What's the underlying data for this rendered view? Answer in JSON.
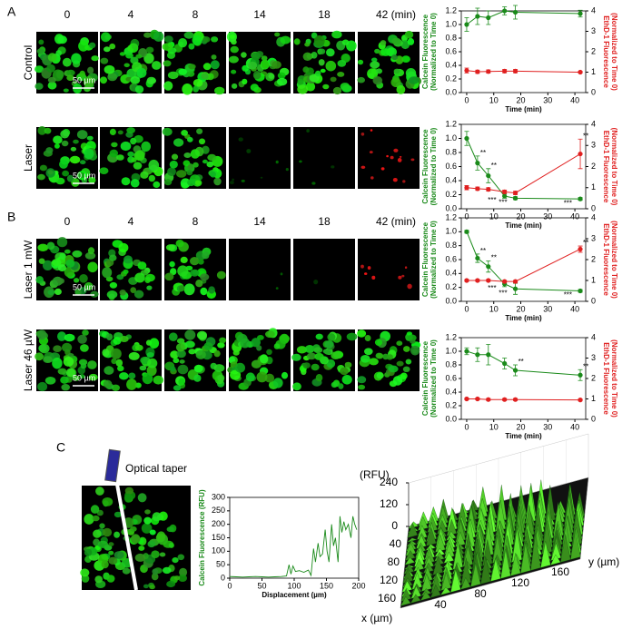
{
  "panels": {
    "A": {
      "label": "A",
      "times": [
        "0",
        "4",
        "8",
        "14",
        "18",
        "42 (min)"
      ],
      "rows": [
        {
          "label": "Control",
          "scale": "50 µm"
        },
        {
          "label": "Laser",
          "scale": "50 µm"
        }
      ]
    },
    "B": {
      "label": "B",
      "times": [
        "0",
        "4",
        "8",
        "14",
        "18",
        "42 (min)"
      ],
      "rows": [
        {
          "label": "Laser 1 mW",
          "scale": "50 µm"
        },
        {
          "label": "Laser 46 µW",
          "scale": "50 µm"
        }
      ]
    },
    "C": {
      "label": "C",
      "taper": "Optical taper"
    }
  },
  "chart_data": [
    {
      "type": "line",
      "x": [
        0,
        4,
        8,
        14,
        18,
        42
      ],
      "xlim": [
        -2,
        44
      ],
      "xticks": [
        0,
        10,
        20,
        30,
        40
      ],
      "ylim": [
        0,
        1.2
      ],
      "yticks": [
        {
          "value": 0,
          "label": "0.0"
        },
        0.2,
        0.4,
        0.6,
        0.8,
        {
          "value": 1,
          "label": "1.0"
        },
        1.2
      ],
      "y2lim": [
        0,
        4
      ],
      "y2ticks": [
        0,
        1,
        2,
        3,
        4
      ],
      "x_label": "Time (min)",
      "y_label": [
        "Calcein Fluorescence",
        "(Normalized to Time 0)"
      ],
      "y2_label": [
        "EthD-1 Fluorescence",
        "(Normalized to Time 0)"
      ],
      "series": [
        {
          "name": "Calcein",
          "color": "#1a8a1a",
          "marker": "circle",
          "values": [
            1.0,
            1.12,
            1.1,
            1.2,
            1.18,
            1.16
          ],
          "errors": [
            0.1,
            0.12,
            0.1,
            0.06,
            0.1,
            0.05
          ]
        },
        {
          "name": "EthD-1",
          "color": "#e02020",
          "marker": "circle",
          "axis": "y2",
          "values": [
            1.08,
            1.02,
            1.03,
            1.05,
            1.05,
            1.0
          ],
          "errors": [
            0.12,
            0.08,
            0.08,
            0.08,
            0.08,
            0.05
          ]
        }
      ]
    },
    {
      "type": "line",
      "x": [
        0,
        4,
        8,
        14,
        18,
        42
      ],
      "xlim": [
        -2,
        44
      ],
      "xticks": [
        0,
        10,
        20,
        30,
        40
      ],
      "ylim": [
        0,
        1.2
      ],
      "yticks": [
        {
          "value": 0,
          "label": "0.0"
        },
        0.2,
        0.4,
        0.6,
        0.8,
        {
          "value": 1,
          "label": "1.0"
        },
        1.2
      ],
      "y2lim": [
        0,
        4
      ],
      "y2ticks": [
        0,
        1,
        2,
        3,
        4
      ],
      "x_label": "Time (min)",
      "y_label": [
        "Calcein Fluorescence",
        "(Normalized to Time 0)"
      ],
      "y2_label": [
        "EthD-1 Fluorescence",
        "(Normalized to Time 0)"
      ],
      "series": [
        {
          "name": "Calcein",
          "color": "#1a8a1a",
          "marker": "circle",
          "values": [
            1.0,
            0.65,
            0.47,
            0.18,
            0.15,
            0.14
          ],
          "errors": [
            0.1,
            0.1,
            0.1,
            0.03,
            0.02,
            0.02
          ],
          "annotations": [
            null,
            "**",
            "**",
            "***",
            "***",
            "***"
          ]
        },
        {
          "name": "EthD-1",
          "color": "#e02020",
          "marker": "circle",
          "axis": "y2",
          "values": [
            1.0,
            0.95,
            0.92,
            0.8,
            0.75,
            2.6
          ],
          "errors": [
            0.1,
            0.08,
            0.08,
            0.08,
            0.08,
            0.7
          ],
          "annotations": [
            null,
            null,
            null,
            null,
            null,
            "**"
          ]
        }
      ]
    },
    {
      "type": "line",
      "x": [
        0,
        4,
        8,
        14,
        18,
        42
      ],
      "xlim": [
        -2,
        44
      ],
      "xticks": [
        0,
        10,
        20,
        30,
        40
      ],
      "ylim": [
        0,
        1.2
      ],
      "yticks": [
        {
          "value": 0,
          "label": "0.0"
        },
        0.2,
        0.4,
        0.6,
        0.8,
        {
          "value": 1,
          "label": "1.0"
        },
        1.2
      ],
      "y2lim": [
        0,
        4
      ],
      "y2ticks": [
        0,
        1,
        2,
        3,
        4
      ],
      "x_label": "Time (min)",
      "y_label": [
        "Calcein Fluorescence",
        "(Normalized to Time 0)"
      ],
      "y2_label": [
        "EthD-1 Fluorescence",
        "(Normalized to Time 0)"
      ],
      "series": [
        {
          "name": "Calcein",
          "color": "#1a8a1a",
          "marker": "circle",
          "values": [
            1.0,
            0.62,
            0.5,
            0.25,
            0.18,
            0.15
          ],
          "errors": [
            0.02,
            0.06,
            0.08,
            0.04,
            0.08,
            0.02
          ],
          "annotations": [
            null,
            "**",
            "**",
            "***",
            "***",
            "***"
          ]
        },
        {
          "name": "EthD-1",
          "color": "#e02020",
          "marker": "circle",
          "axis": "y2",
          "values": [
            1.0,
            1.0,
            1.0,
            0.95,
            0.95,
            2.5
          ],
          "errors": [
            0.05,
            0.05,
            0.05,
            0.05,
            0.05,
            0.15
          ],
          "annotations": [
            null,
            null,
            null,
            null,
            null,
            "**"
          ]
        }
      ]
    },
    {
      "type": "line",
      "x": [
        0,
        4,
        8,
        14,
        18,
        42
      ],
      "xlim": [
        -2,
        44
      ],
      "xticks": [
        0,
        10,
        20,
        30,
        40
      ],
      "ylim": [
        0,
        1.2
      ],
      "yticks": [
        {
          "value": 0,
          "label": "0.0"
        },
        0.2,
        0.4,
        0.6,
        0.8,
        {
          "value": 1,
          "label": "1.0"
        },
        1.2
      ],
      "y2lim": [
        0,
        4
      ],
      "y2ticks": [
        0,
        1,
        2,
        3,
        4
      ],
      "x_label": "Time (min)",
      "y_label": [
        "Calcein Fluorescence",
        "(Normalized to Time 0)"
      ],
      "y2_label": [
        "EthD-1 Fluorescence",
        "(Normalized to Time 0)"
      ],
      "series": [
        {
          "name": "Calcein",
          "color": "#1a8a1a",
          "marker": "circle",
          "values": [
            1.0,
            0.95,
            0.95,
            0.82,
            0.72,
            0.65
          ],
          "errors": [
            0.05,
            0.1,
            0.15,
            0.08,
            0.08,
            0.08
          ],
          "annotations": [
            null,
            null,
            null,
            null,
            "**",
            "**"
          ]
        },
        {
          "name": "EthD-1",
          "color": "#e02020",
          "marker": "circle",
          "axis": "y2",
          "values": [
            1.0,
            1.0,
            0.97,
            0.97,
            0.97,
            0.95
          ],
          "errors": [
            0.05,
            0.05,
            0.05,
            0.05,
            0.05,
            0.05
          ]
        }
      ]
    },
    {
      "type": "line",
      "xlim": [
        0,
        200
      ],
      "xticks": [
        0,
        50,
        100,
        150,
        200
      ],
      "ylim": [
        0,
        300
      ],
      "yticks": [
        0,
        50,
        100,
        150,
        200,
        250,
        300
      ],
      "x_label": "Displacement (µm)",
      "y_label": [
        "Calcein Fluorescence (RFU)"
      ],
      "x": [
        0,
        10,
        20,
        30,
        40,
        50,
        60,
        70,
        80,
        88,
        92,
        95,
        98,
        102,
        108,
        115,
        122,
        126,
        130,
        133,
        137,
        140,
        144,
        148,
        151,
        154,
        158,
        161,
        164,
        168,
        171,
        174,
        177,
        180,
        184,
        188,
        191,
        194,
        197
      ],
      "series": [
        {
          "name": "Calcein",
          "color": "#1a8a1a",
          "values": [
            6,
            5,
            4,
            5,
            6,
            5,
            4,
            5,
            6,
            8,
            50,
            15,
            45,
            25,
            28,
            22,
            30,
            10,
            110,
            60,
            130,
            80,
            90,
            180,
            100,
            60,
            200,
            120,
            150,
            60,
            230,
            170,
            210,
            180,
            200,
            150,
            230,
            200,
            180
          ]
        }
      ]
    }
  ],
  "surface": {
    "z_label": "(RFU)",
    "zlim": [
      0,
      240
    ],
    "zticks": [
      240,
      120,
      0
    ],
    "xlim": [
      0,
      180
    ],
    "xticks": [
      40,
      80,
      120,
      160
    ],
    "x_label": "x (µm)",
    "ylim": [
      0,
      180
    ],
    "yticks": [
      40,
      80,
      120,
      160
    ],
    "y_label": "y (µm)"
  }
}
